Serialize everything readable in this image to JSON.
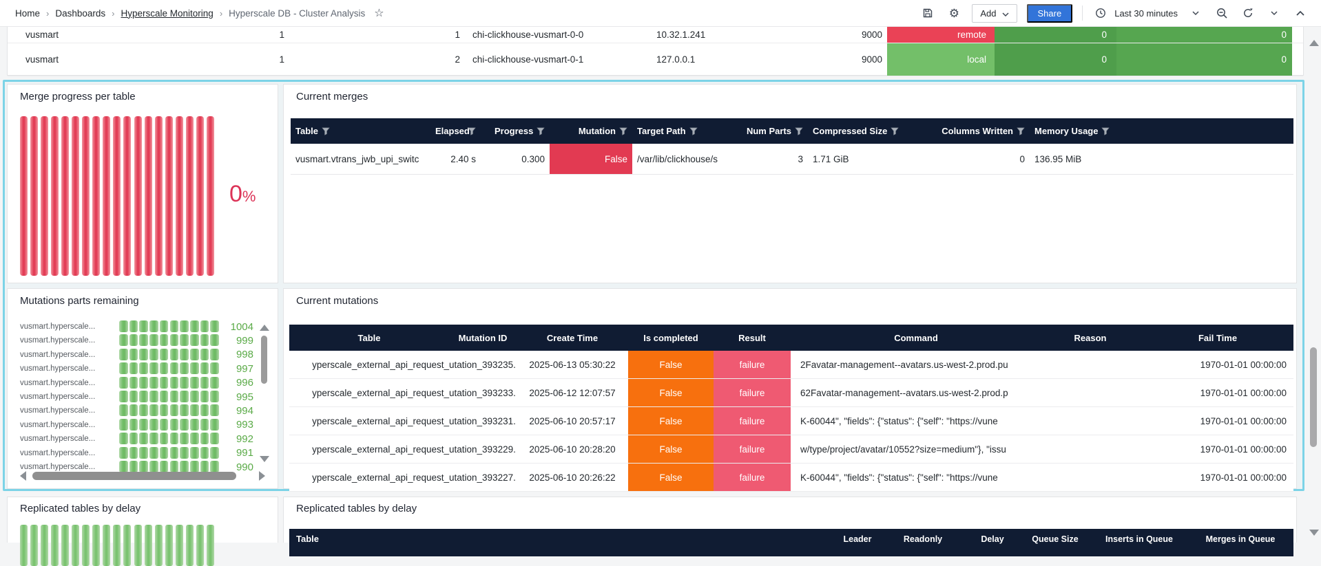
{
  "breadcrumb": {
    "separator": "›",
    "items": [
      "Home",
      "Dashboards",
      "Hyperscale Monitoring",
      "Hyperscale DB - Cluster Analysis"
    ]
  },
  "toolbar": {
    "add_label": "Add",
    "share_label": "Share",
    "time_range": "Last 30 minutes"
  },
  "cluster_table": {
    "rows": [
      {
        "name": "vusmart",
        "shard": "1",
        "replica": "1",
        "host": "chi-clickhouse-vusmart-0-0",
        "address": "10.32.1.241",
        "port": "9000",
        "locality": "remote",
        "locality_style": "red",
        "queue1": "0",
        "queue2": "0"
      },
      {
        "name": "vusmart",
        "shard": "1",
        "replica": "2",
        "host": "chi-clickhouse-vusmart-0-1",
        "address": "127.0.0.1",
        "port": "9000",
        "locality": "local",
        "locality_style": "green",
        "queue1": "0",
        "queue2": "0"
      }
    ]
  },
  "merge_progress": {
    "title": "Merge progress per table",
    "value": "0",
    "unit": "%",
    "bar_count": 19,
    "bar_color": "#e23c55"
  },
  "current_merges": {
    "title": "Current merges",
    "columns": [
      "Table",
      "Elapsed",
      "Progress",
      "Mutation",
      "Target Path",
      "Num Parts",
      "Compressed Size",
      "Columns Written",
      "Memory Usage"
    ],
    "rows": [
      [
        "vusmart.vtrans_jwb_upi_switc",
        "2.40 s",
        "0.300",
        "False",
        "/var/lib/clickhouse/s",
        "3",
        "1.71 GiB",
        "0",
        "136.95 MiB"
      ]
    ]
  },
  "mutations_remaining": {
    "title": "Mutations parts remaining",
    "segments_per_row": 10,
    "rows": [
      {
        "label": "vusmart.hyperscale...",
        "value": "1004"
      },
      {
        "label": "vusmart.hyperscale...",
        "value": "999"
      },
      {
        "label": "vusmart.hyperscale...",
        "value": "998"
      },
      {
        "label": "vusmart.hyperscale...",
        "value": "997"
      },
      {
        "label": "vusmart.hyperscale...",
        "value": "996"
      },
      {
        "label": "vusmart.hyperscale...",
        "value": "995"
      },
      {
        "label": "vusmart.hyperscale...",
        "value": "994"
      },
      {
        "label": "vusmart.hyperscale...",
        "value": "993"
      },
      {
        "label": "vusmart.hyperscale...",
        "value": "992"
      },
      {
        "label": "vusmart.hyperscale...",
        "value": "991"
      },
      {
        "label": "vusmart.hyperscale...",
        "value": "990"
      }
    ]
  },
  "current_mutations": {
    "title": "Current mutations",
    "columns": [
      "Table",
      "Mutation ID",
      "Create Time",
      "Is completed",
      "Result",
      "Command",
      "Reason",
      "Fail Time"
    ],
    "rows": [
      {
        "table": "yperscale_external_api_request_",
        "mutation_id": "utation_393235.",
        "create_time": "2025-06-13 05:30:22",
        "is_completed": "False",
        "result": "failure",
        "command": "2Favatar-management--avatars.us-west-2.prod.pu",
        "reason": "",
        "fail_time": "1970-01-01 00:00:00"
      },
      {
        "table": "yperscale_external_api_request_",
        "mutation_id": "utation_393233.",
        "create_time": "2025-06-12 12:07:57",
        "is_completed": "False",
        "result": "failure",
        "command": "62Favatar-management--avatars.us-west-2.prod.p",
        "reason": "",
        "fail_time": "1970-01-01 00:00:00"
      },
      {
        "table": "yperscale_external_api_request_",
        "mutation_id": "utation_393231.",
        "create_time": "2025-06-10 20:57:17",
        "is_completed": "False",
        "result": "failure",
        "command": "K-60044\", \"fields\": {\"status\": {\"self\": \"https://vune",
        "reason": "",
        "fail_time": "1970-01-01 00:00:00"
      },
      {
        "table": "yperscale_external_api_request_",
        "mutation_id": "utation_393229.",
        "create_time": "2025-06-10 20:28:20",
        "is_completed": "False",
        "result": "failure",
        "command": "w/type/project/avatar/10552?size=medium\"}, \"issu",
        "reason": "",
        "fail_time": "1970-01-01 00:00:00"
      },
      {
        "table": "yperscale_external_api_request_",
        "mutation_id": "utation_393227.",
        "create_time": "2025-06-10 20:26:22",
        "is_completed": "False",
        "result": "failure",
        "command": "K-60044\", \"fields\": {\"status\": {\"self\": \"https://vune",
        "reason": "",
        "fail_time": "1970-01-01 00:00:00"
      }
    ]
  },
  "replicated_left": {
    "title": "Replicated tables by delay",
    "bar_count": 19
  },
  "replicated_right": {
    "title": "Replicated tables by delay",
    "columns": [
      "Table",
      "Leader",
      "Readonly",
      "Delay",
      "Queue Size",
      "Inserts in Queue",
      "Merges in Queue"
    ]
  },
  "colors": {
    "accent_blue": "#3274d9",
    "header_navy": "#101c33",
    "red": "#e23a52",
    "orange": "#f7700e",
    "pink": "#ef5a72",
    "green": "#73bf69",
    "highlight_cyan": "#7cd3e7"
  }
}
